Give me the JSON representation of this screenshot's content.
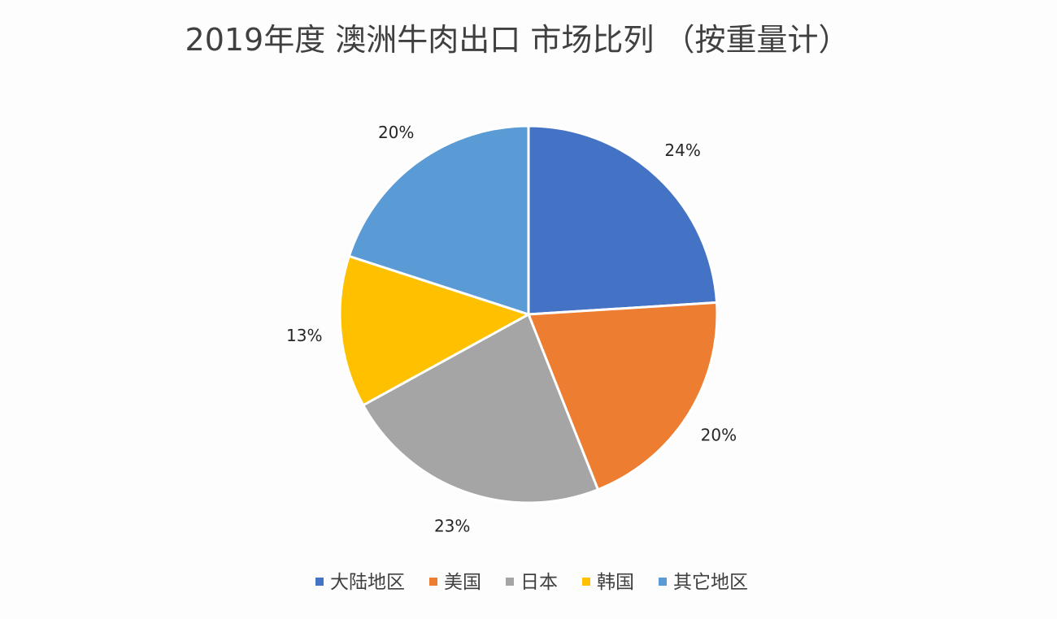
{
  "chart_data": {
    "type": "pie",
    "title": "2019年度 澳洲牛肉出口 市场比列 （按重量计）",
    "categories": [
      "大陆地区",
      "美国",
      "日本",
      "韩国",
      "其它地区"
    ],
    "values": [
      24,
      20,
      23,
      13,
      20
    ],
    "labels": [
      "24%",
      "20%",
      "23%",
      "13%",
      "20%"
    ],
    "unit": "%",
    "start_angle_deg": 0,
    "direction": "clockwise",
    "colors": [
      "#4472C4",
      "#ED7D31",
      "#A5A5A5",
      "#FFC000",
      "#5B9BD5"
    ],
    "legend": {
      "position": "bottom",
      "entries": [
        "大陆地区",
        "美国",
        "日本",
        "韩国",
        "其它地区"
      ]
    }
  }
}
